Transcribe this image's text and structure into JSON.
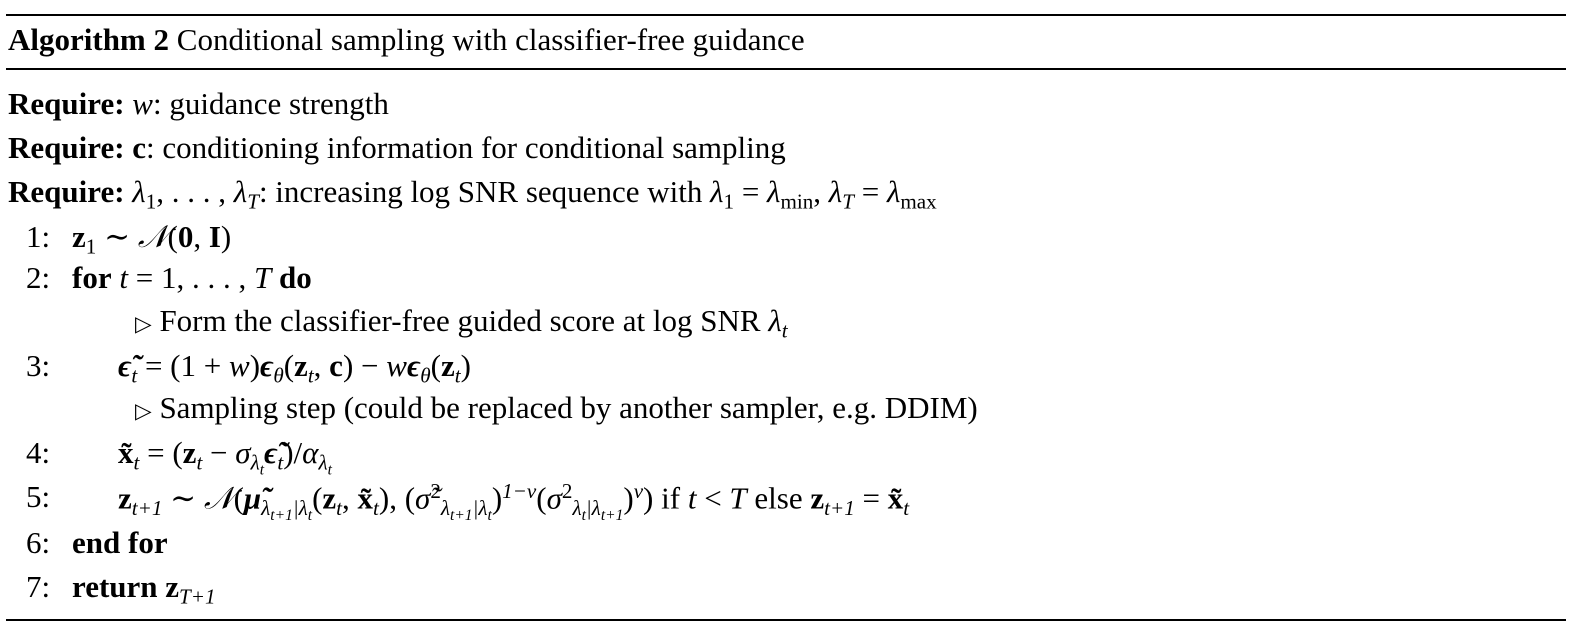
{
  "algorithm": {
    "title": [
      [
        "Algorithm 2",
        "b"
      ],
      [
        " Conditional sampling with classifier-free guidance",
        ""
      ]
    ],
    "lines": [
      {
        "num": "",
        "indent": 0,
        "segs": [
          [
            "Require:",
            "b"
          ],
          [
            "  ",
            ""
          ],
          [
            "w",
            "i"
          ],
          [
            ": guidance strength",
            ""
          ]
        ]
      },
      {
        "num": "",
        "indent": 0,
        "segs": [
          [
            "Require:",
            "b"
          ],
          [
            "  ",
            ""
          ],
          [
            "c",
            "b"
          ],
          [
            ": conditioning information for conditional sampling",
            ""
          ]
        ]
      },
      {
        "num": "",
        "indent": 0,
        "segs": [
          [
            "Require:",
            "b"
          ],
          [
            "  ",
            ""
          ],
          [
            "λ",
            "i"
          ],
          [
            "1",
            "sub"
          ],
          [
            ", . . . , ",
            ""
          ],
          [
            "λ",
            "i"
          ],
          [
            "T",
            "subi"
          ],
          [
            ": increasing log SNR sequence with ",
            ""
          ],
          [
            "λ",
            "i"
          ],
          [
            "1",
            "sub"
          ],
          [
            " = ",
            ""
          ],
          [
            "λ",
            "i"
          ],
          [
            "min",
            "sub"
          ],
          [
            ", ",
            ""
          ],
          [
            "λ",
            "i"
          ],
          [
            "T",
            "subi"
          ],
          [
            " = ",
            ""
          ],
          [
            "λ",
            "i"
          ],
          [
            "max",
            "sub"
          ]
        ]
      },
      {
        "num": "1:",
        "indent": 1,
        "segs": [
          [
            "z",
            "b"
          ],
          [
            "1",
            "sub"
          ],
          [
            " ∼ ",
            ""
          ],
          [
            "𝒩",
            "i"
          ],
          [
            "(",
            ""
          ],
          [
            "0",
            "b"
          ],
          [
            ", ",
            ""
          ],
          [
            "I",
            "b"
          ],
          [
            ")",
            ""
          ]
        ]
      },
      {
        "num": "2:",
        "indent": 1,
        "segs": [
          [
            "for",
            "b"
          ],
          [
            " ",
            ""
          ],
          [
            "t",
            "i"
          ],
          [
            " = 1, . . . , ",
            ""
          ],
          [
            "T",
            "i"
          ],
          [
            " ",
            ""
          ],
          [
            "do",
            "b"
          ]
        ]
      },
      {
        "num": "",
        "indent": 3,
        "segs": [
          [
            "▷",
            "tri"
          ],
          [
            " Form the classifier-free guided score at log SNR ",
            ""
          ],
          [
            "λ",
            "i"
          ],
          [
            "t",
            "subi"
          ]
        ]
      },
      {
        "num": "3:",
        "indent": 2,
        "segs": [
          [
            "ϵ̃",
            "bi"
          ],
          [
            "t",
            "subi"
          ],
          [
            " = (1 + ",
            ""
          ],
          [
            "w",
            "i"
          ],
          [
            ")",
            ""
          ],
          [
            "ϵ",
            "bi"
          ],
          [
            "θ",
            "subi"
          ],
          [
            "(",
            ""
          ],
          [
            "z",
            "b"
          ],
          [
            "t",
            "subi"
          ],
          [
            ", ",
            ""
          ],
          [
            "c",
            "b"
          ],
          [
            ") − ",
            ""
          ],
          [
            "w",
            "i"
          ],
          [
            "ϵ",
            "bi"
          ],
          [
            "θ",
            "subi"
          ],
          [
            "(",
            ""
          ],
          [
            "z",
            "b"
          ],
          [
            "t",
            "subi"
          ],
          [
            ")",
            ""
          ]
        ]
      },
      {
        "num": "",
        "indent": 3,
        "segs": [
          [
            "▷",
            "tri"
          ],
          [
            " Sampling step (could be replaced by another sampler, e.g. DDIM)",
            ""
          ]
        ]
      },
      {
        "num": "4:",
        "indent": 2,
        "segs": [
          [
            "x̃",
            "b"
          ],
          [
            "t",
            "subi"
          ],
          [
            " = (",
            ""
          ],
          [
            "z",
            "b"
          ],
          [
            "t",
            "subi"
          ],
          [
            " − ",
            ""
          ],
          [
            "σ",
            "i"
          ],
          [
            "λ",
            "subi"
          ],
          [
            "t",
            "sub2"
          ],
          [
            "ϵ̃",
            "bi"
          ],
          [
            "t",
            "subi"
          ],
          [
            ")/",
            ""
          ],
          [
            "α",
            "i"
          ],
          [
            "λ",
            "subi"
          ],
          [
            "t",
            "sub2"
          ]
        ]
      },
      {
        "num": "5:",
        "indent": 2,
        "segs": [
          [
            "z",
            "b"
          ],
          [
            "t+1",
            "subi"
          ],
          [
            " ∼ ",
            ""
          ],
          [
            "𝒩",
            "i"
          ],
          [
            "(",
            ""
          ],
          [
            "μ̃",
            "bi"
          ],
          [
            "λ",
            "subi"
          ],
          [
            "t+1",
            "sub2"
          ],
          [
            "|λ",
            "subi"
          ],
          [
            "t",
            "sub2"
          ],
          [
            "(",
            ""
          ],
          [
            "z",
            "b"
          ],
          [
            "t",
            "subi"
          ],
          [
            ", ",
            ""
          ],
          [
            "x̃",
            "b"
          ],
          [
            "t",
            "subi"
          ],
          [
            "), (",
            ""
          ],
          [
            "σ̃",
            "i"
          ],
          [
            "2",
            "sup"
          ],
          [
            "λ",
            "subi"
          ],
          [
            "t+1",
            "sub2"
          ],
          [
            "|λ",
            "subi"
          ],
          [
            "t",
            "sub2"
          ],
          [
            ")",
            ""
          ],
          [
            "1−v",
            "supi"
          ],
          [
            "(",
            ""
          ],
          [
            "σ",
            "i"
          ],
          [
            "2",
            "sup"
          ],
          [
            "λ",
            "subi"
          ],
          [
            "t",
            "sub2"
          ],
          [
            "|λ",
            "subi"
          ],
          [
            "t+1",
            "sub2"
          ],
          [
            ")",
            ""
          ],
          [
            "v",
            "supi"
          ],
          [
            ") if ",
            ""
          ],
          [
            "t",
            "i"
          ],
          [
            " < ",
            ""
          ],
          [
            "T",
            "i"
          ],
          [
            " else ",
            ""
          ],
          [
            "z",
            "b"
          ],
          [
            "t+1",
            "subi"
          ],
          [
            " = ",
            ""
          ],
          [
            "x̃",
            "b"
          ],
          [
            "t",
            "subi"
          ]
        ]
      },
      {
        "num": "6:",
        "indent": 1,
        "segs": [
          [
            "end for",
            "b"
          ]
        ]
      },
      {
        "num": "7:",
        "indent": 1,
        "segs": [
          [
            "return",
            "b"
          ],
          [
            " ",
            ""
          ],
          [
            "z",
            "b"
          ],
          [
            "T+1",
            "subi"
          ]
        ]
      }
    ]
  }
}
